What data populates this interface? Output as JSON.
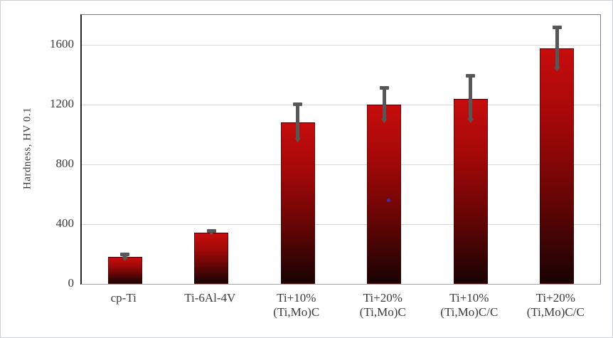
{
  "figure": {
    "kind": "bar-chart-screenshot",
    "background": "#ffffff",
    "border_color": "#ccd2d8"
  },
  "chart_data": {
    "type": "bar",
    "title": "",
    "xlabel": "",
    "ylabel": "Hardness, HV 0.1",
    "ylim": [
      0,
      1800
    ],
    "yticks": [
      0,
      400,
      800,
      1200,
      1600
    ],
    "grid": true,
    "legend": null,
    "categories": [
      "cp-Ti",
      "Ti-6Al-4V",
      "Ti+10%\n(Ti,Mo)C",
      "Ti+20%\n(Ti,Mo)C",
      "Ti+10%\n(Ti,Mo)C/C",
      "Ti+20%\n(Ti,Mo)C/C"
    ],
    "values": [
      180,
      345,
      1080,
      1200,
      1240,
      1575
    ],
    "errors": [
      25,
      15,
      130,
      120,
      160,
      150
    ],
    "colors": {
      "bar_top": "#c60d0d",
      "bar_bottom": "#1a0202",
      "error_bar": "#575757",
      "gridline": "#d9d9d9",
      "axis_line": "#262626",
      "frame": "#7f7f7f",
      "text": "#3a3a3a"
    },
    "annotations": [
      {
        "name": "blue-dot",
        "bar_index": 3,
        "value": 560,
        "color": "#3a2db5"
      }
    ]
  }
}
